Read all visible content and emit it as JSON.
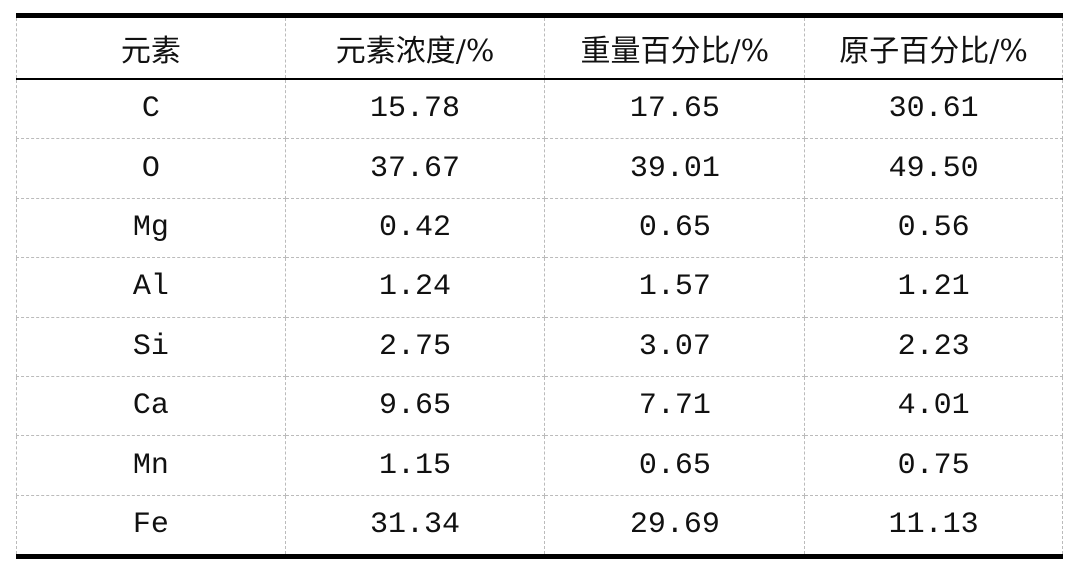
{
  "table": {
    "headers": [
      "元素",
      "元素浓度/%",
      "重量百分比/%",
      "原子百分比/%"
    ],
    "rows": [
      [
        "C",
        "15.78",
        "17.65",
        "30.61"
      ],
      [
        "O",
        "37.67",
        "39.01",
        "49.50"
      ],
      [
        "Mg",
        "0.42",
        "0.65",
        "0.56"
      ],
      [
        "Al",
        "1.24",
        "1.57",
        "1.21"
      ],
      [
        "Si",
        "2.75",
        "3.07",
        "2.23"
      ],
      [
        "Ca",
        "9.65",
        "7.71",
        "4.01"
      ],
      [
        "Mn",
        "1.15",
        "0.65",
        "0.75"
      ],
      [
        "Fe",
        "31.34",
        "29.69",
        "11.13"
      ]
    ]
  }
}
